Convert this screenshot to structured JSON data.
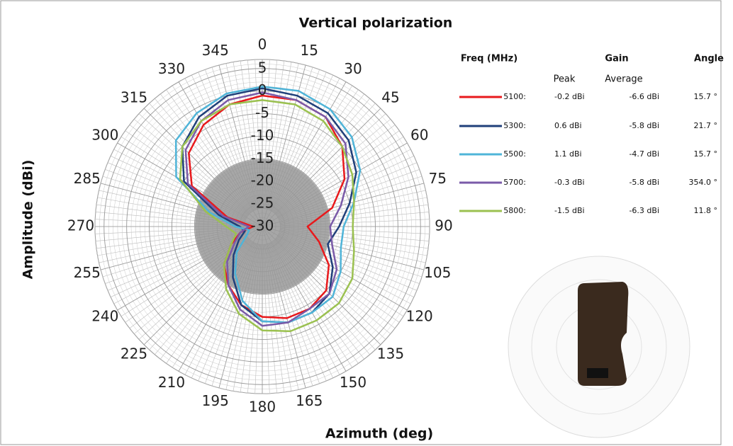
{
  "chart_data": {
    "type": "polar-line",
    "title": "Vertical polarization",
    "ylabel": "Amplitude (dBi)",
    "xlabel": "Azimuth (deg)",
    "x": [
      0,
      15,
      30,
      45,
      60,
      75,
      90,
      105,
      120,
      135,
      150,
      165,
      180,
      195,
      210,
      225,
      240,
      255,
      270,
      285,
      300,
      315,
      330,
      345
    ],
    "xticks": [
      0,
      15,
      30,
      45,
      60,
      75,
      90,
      105,
      120,
      135,
      150,
      165,
      180,
      195,
      210,
      225,
      240,
      255,
      270,
      285,
      300,
      315,
      330,
      345
    ],
    "ylim": [
      -30,
      7
    ],
    "yticks": [
      5,
      0,
      -5,
      -10,
      -15,
      -20,
      -25,
      -30
    ],
    "grid": true,
    "series": [
      {
        "name": "5100:",
        "color": "#e8191c",
        "values": [
          -1,
          -1,
          -2,
          -5,
          -9,
          -14,
          -20,
          -17,
          -13,
          -10,
          -9,
          -9,
          -10,
          -12,
          -15,
          -18,
          -22,
          -25,
          -28,
          -22,
          -12,
          -7,
          -4,
          -2
        ]
      },
      {
        "name": "5300:",
        "color": "#1f3f7a",
        "values": [
          0.6,
          0,
          -1,
          -3,
          -6,
          -10,
          -13,
          -15,
          -12,
          -9,
          -8,
          -8,
          -9,
          -12,
          -17,
          -21,
          -24,
          -26,
          -25,
          -20,
          -10,
          -5,
          -2,
          0
        ]
      },
      {
        "name": "5500:",
        "color": "#4fb4d8",
        "values": [
          1,
          1.1,
          0,
          -2,
          -5,
          -9,
          -12,
          -12,
          -10,
          -8,
          -8,
          -8,
          -9,
          -13,
          -18,
          -22,
          -26,
          -27,
          -24,
          -18,
          -8,
          -3,
          -1,
          0.5
        ]
      },
      {
        "name": "5700:",
        "color": "#7a5aa8",
        "values": [
          -0.3,
          -1,
          -2,
          -4,
          -8,
          -12,
          -15,
          -14,
          -11,
          -9,
          -9,
          -8,
          -8,
          -11,
          -15,
          -19,
          -23,
          -25,
          -27,
          -21,
          -11,
          -6,
          -3,
          -1
        ]
      },
      {
        "name": "5800:",
        "color": "#9bc150",
        "values": [
          -2,
          -2,
          -3,
          -5,
          -7,
          -9,
          -10,
          -9,
          -7,
          -6,
          -6,
          -6,
          -7,
          -10,
          -14,
          -18,
          -22,
          -24,
          -22,
          -17,
          -9,
          -5,
          -3,
          -2
        ]
      }
    ],
    "legend_table": {
      "freq_header": "Freq (MHz)",
      "gain_header": "Gain",
      "angle_header": "Angle",
      "peak_header": "Peak",
      "average_header": "Average",
      "rows": [
        [
          "-0.2 dBi",
          "-6.6 dBi",
          "15.7 °"
        ],
        [
          "0.6 dBi",
          "-5.8 dBi",
          "21.7 °"
        ],
        [
          "1.1 dBi",
          "-4.7 dBi",
          "15.7 °"
        ],
        [
          "-0.3 dBi",
          "-5.8 dBi",
          "354.0 °"
        ],
        [
          "-1.5 dBi",
          "-6.3 dBi",
          "11.8 °"
        ]
      ]
    }
  }
}
